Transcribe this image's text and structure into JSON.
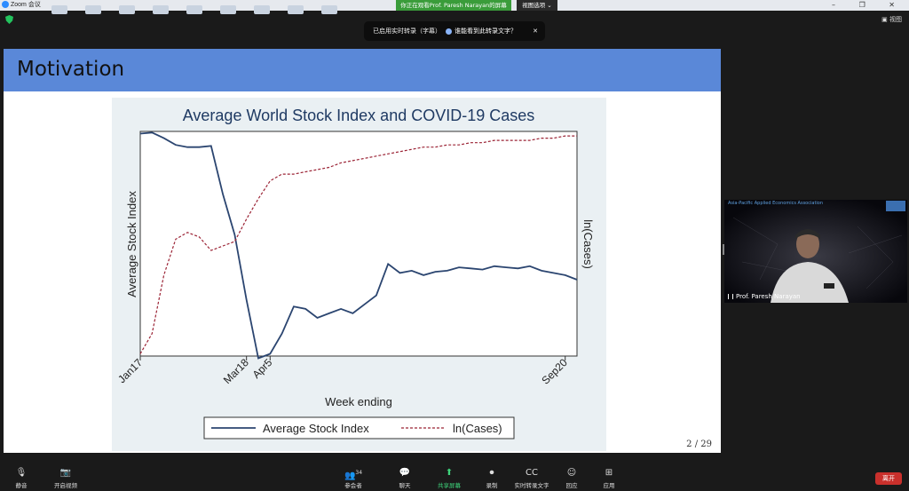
{
  "window": {
    "app_title": "Zoom 会议",
    "viewing_banner": "你正在观看Prof. Paresh  Narayan的屏幕",
    "view_options": "视图选项 ⌄",
    "controls": "– ❐ ✕"
  },
  "top": {
    "view_button": "▣ 视图"
  },
  "captions_bar": {
    "status": "已启用实时转录（字幕）",
    "who_can_see": "谁能看到此转录文字？",
    "close": "✕"
  },
  "slide": {
    "title": "Motivation",
    "page_number": "2 / 29"
  },
  "chart_data": {
    "type": "line",
    "title": "Average World Stock Index and COVID-19 Cases",
    "xlabel": "Week ending",
    "ylabel_left": "Average Stock Index",
    "ylabel_right": "ln(Cases)",
    "x": [
      1,
      2,
      3,
      4,
      5,
      6,
      7,
      8,
      9,
      10,
      11,
      12,
      13,
      14,
      15,
      16,
      17,
      18,
      19,
      20,
      21,
      22,
      23,
      24,
      25,
      26,
      27,
      28,
      29,
      30,
      31,
      32,
      33,
      34,
      35,
      36,
      37,
      38
    ],
    "xticks": [
      {
        "x": 1,
        "label": "Jan17"
      },
      {
        "x": 10,
        "label": "Mar18"
      },
      {
        "x": 12,
        "label": "Apr5"
      },
      {
        "x": 37,
        "label": "Sep20"
      }
    ],
    "series": [
      {
        "name": "Average Stock Index",
        "style": "solid",
        "color": "#2b4570",
        "values": [
          0.99,
          0.995,
          0.97,
          0.94,
          0.93,
          0.93,
          0.935,
          0.72,
          0.54,
          0.25,
          -0.01,
          0.01,
          0.1,
          0.22,
          0.21,
          0.17,
          0.19,
          0.21,
          0.19,
          0.23,
          0.27,
          0.41,
          0.37,
          0.38,
          0.36,
          0.375,
          0.38,
          0.395,
          0.39,
          0.385,
          0.4,
          0.395,
          0.39,
          0.4,
          0.38,
          0.37,
          0.36,
          0.34
        ]
      },
      {
        "name": "ln(Cases)",
        "style": "dashed",
        "color": "#9b2335",
        "values": [
          0.01,
          0.1,
          0.36,
          0.52,
          0.55,
          0.53,
          0.47,
          0.49,
          0.51,
          0.61,
          0.7,
          0.78,
          0.81,
          0.81,
          0.82,
          0.83,
          0.84,
          0.86,
          0.87,
          0.88,
          0.89,
          0.9,
          0.91,
          0.92,
          0.93,
          0.93,
          0.94,
          0.94,
          0.95,
          0.95,
          0.96,
          0.96,
          0.96,
          0.96,
          0.97,
          0.97,
          0.98,
          0.98
        ]
      }
    ],
    "legend_position": "bottom",
    "grid": false
  },
  "video": {
    "banner_text": "Asia-Pacific Applied Economics Association",
    "participant_name": "Prof. Paresh  Narayan"
  },
  "toolbar": {
    "mute": {
      "icon": "🎙",
      "label": "静音"
    },
    "video": {
      "icon": "📷",
      "label": "开启视频"
    },
    "participants": {
      "icon": "👥",
      "count": "34",
      "label": "参会者"
    },
    "chat": {
      "icon": "💬",
      "label": "聊天"
    },
    "share": {
      "icon": "⬆",
      "label": "共享屏幕"
    },
    "record": {
      "icon": "⏺",
      "label": "录制"
    },
    "captions": {
      "icon": "CC",
      "label": "实时转录文字"
    },
    "reactions": {
      "icon": "☺",
      "label": "回应"
    },
    "apps": {
      "icon": "⊞",
      "label": "应用"
    },
    "leave": "离开"
  }
}
